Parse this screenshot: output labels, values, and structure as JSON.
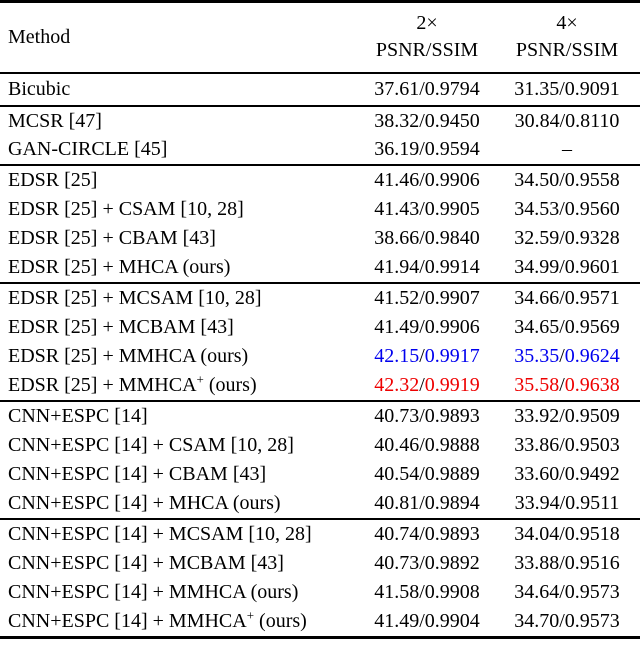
{
  "header": {
    "method": "Method",
    "columns": [
      {
        "scale": "2×",
        "metric": "PSNR/SSIM"
      },
      {
        "scale": "4×",
        "metric": "PSNR/SSIM"
      }
    ]
  },
  "symbols": {
    "separator": "/",
    "missing": "–"
  },
  "colors": {
    "text": "#000000",
    "rule": "#000000",
    "highlight_blue": "#0000ee",
    "highlight_red": "#ee0000"
  },
  "groups": [
    {
      "rows": [
        {
          "method": "Bicubic",
          "sup": "",
          "suffix": "",
          "x2_psnr": "37.61",
          "x2_ssim": "0.9794",
          "x4_psnr": "31.35",
          "x4_ssim": "0.9091",
          "color": ""
        }
      ]
    },
    {
      "rows": [
        {
          "method": "MCSR [47]",
          "sup": "",
          "suffix": "",
          "x2_psnr": "38.32",
          "x2_ssim": "0.9450",
          "x4_psnr": "30.84",
          "x4_ssim": "0.8110",
          "color": ""
        },
        {
          "method": "GAN-CIRCLE [45]",
          "sup": "",
          "suffix": "",
          "x2_psnr": "36.19",
          "x2_ssim": "0.9594",
          "x4_psnr": "",
          "x4_ssim": "",
          "color": ""
        }
      ]
    },
    {
      "rows": [
        {
          "method": "EDSR [25]",
          "sup": "",
          "suffix": "",
          "x2_psnr": "41.46",
          "x2_ssim": "0.9906",
          "x4_psnr": "34.50",
          "x4_ssim": "0.9558",
          "color": ""
        },
        {
          "method": "EDSR [25] + CSAM [10, 28]",
          "sup": "",
          "suffix": "",
          "x2_psnr": "41.43",
          "x2_ssim": "0.9905",
          "x4_psnr": "34.53",
          "x4_ssim": "0.9560",
          "color": ""
        },
        {
          "method": "EDSR [25] + CBAM [43]",
          "sup": "",
          "suffix": "",
          "x2_psnr": "38.66",
          "x2_ssim": "0.9840",
          "x4_psnr": "32.59",
          "x4_ssim": "0.9328",
          "color": ""
        },
        {
          "method": "EDSR [25] + MHCA (ours)",
          "sup": "",
          "suffix": "",
          "x2_psnr": "41.94",
          "x2_ssim": "0.9914",
          "x4_psnr": "34.99",
          "x4_ssim": "0.9601",
          "color": ""
        }
      ]
    },
    {
      "rows": [
        {
          "method": "EDSR [25] + MCSAM [10, 28]",
          "sup": "",
          "suffix": "",
          "x2_psnr": "41.52",
          "x2_ssim": "0.9907",
          "x4_psnr": "34.66",
          "x4_ssim": "0.9571",
          "color": ""
        },
        {
          "method": "EDSR [25] + MCBAM [43]",
          "sup": "",
          "suffix": "",
          "x2_psnr": "41.49",
          "x2_ssim": "0.9906",
          "x4_psnr": "34.65",
          "x4_ssim": "0.9569",
          "color": ""
        },
        {
          "method": "EDSR [25] + MMHCA (ours)",
          "sup": "",
          "suffix": "",
          "x2_psnr": "42.15",
          "x2_ssim": "0.9917",
          "x4_psnr": "35.35",
          "x4_ssim": "0.9624",
          "color": "blue"
        },
        {
          "method": "EDSR [25] + MMHCA",
          "sup": "+",
          "suffix": " (ours)",
          "x2_psnr": "42.32",
          "x2_ssim": "0.9919",
          "x4_psnr": "35.58",
          "x4_ssim": "0.9638",
          "color": "red"
        }
      ]
    },
    {
      "rows": [
        {
          "method": "CNN+ESPC [14]",
          "sup": "",
          "suffix": "",
          "x2_psnr": "40.73",
          "x2_ssim": "0.9893",
          "x4_psnr": "33.92",
          "x4_ssim": "0.9509",
          "color": ""
        },
        {
          "method": "CNN+ESPC [14] + CSAM [10, 28]",
          "sup": "",
          "suffix": "",
          "x2_psnr": "40.46",
          "x2_ssim": "0.9888",
          "x4_psnr": "33.86",
          "x4_ssim": "0.9503",
          "color": ""
        },
        {
          "method": "CNN+ESPC [14] + CBAM [43]",
          "sup": "",
          "suffix": "",
          "x2_psnr": "40.54",
          "x2_ssim": "0.9889",
          "x4_psnr": "33.60",
          "x4_ssim": "0.9492",
          "color": ""
        },
        {
          "method": "CNN+ESPC [14] + MHCA (ours)",
          "sup": "",
          "suffix": "",
          "x2_psnr": "40.81",
          "x2_ssim": "0.9894",
          "x4_psnr": "33.94",
          "x4_ssim": "0.9511",
          "color": ""
        }
      ]
    },
    {
      "rows": [
        {
          "method": "CNN+ESPC [14] + MCSAM [10, 28]",
          "sup": "",
          "suffix": "",
          "x2_psnr": "40.74",
          "x2_ssim": "0.9893",
          "x4_psnr": "34.04",
          "x4_ssim": "0.9518",
          "color": ""
        },
        {
          "method": "CNN+ESPC [14] + MCBAM [43]",
          "sup": "",
          "suffix": "",
          "x2_psnr": "40.73",
          "x2_ssim": "0.9892",
          "x4_psnr": "33.88",
          "x4_ssim": "0.9516",
          "color": ""
        },
        {
          "method": "CNN+ESPC [14] + MMHCA (ours)",
          "sup": "",
          "suffix": "",
          "x2_psnr": "41.58",
          "x2_ssim": "0.9908",
          "x4_psnr": "34.64",
          "x4_ssim": "0.9573",
          "color": ""
        },
        {
          "method": "CNN+ESPC [14] + MMHCA",
          "sup": "+",
          "suffix": " (ours)",
          "x2_psnr": "41.49",
          "x2_ssim": "0.9904",
          "x4_psnr": "34.70",
          "x4_ssim": "0.9573",
          "color": ""
        }
      ]
    }
  ]
}
